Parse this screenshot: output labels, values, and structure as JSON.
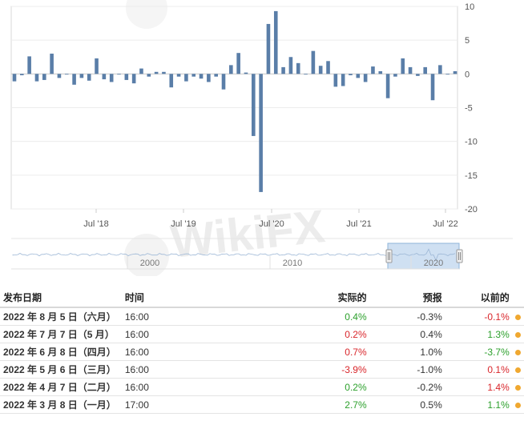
{
  "chart_data": {
    "type": "bar",
    "x_ticks": [
      "Jul '18",
      "Jul '19",
      "Jul '20",
      "Jul '21",
      "Jul '22"
    ],
    "y_ticks": [
      10,
      5,
      0,
      -5,
      -10,
      -15,
      -20
    ],
    "ylim": [
      -20,
      10
    ],
    "values": [
      -1.1,
      -0.2,
      2.6,
      -1.1,
      -0.9,
      3.0,
      -0.6,
      -0.1,
      -1.6,
      -0.6,
      -1.0,
      2.3,
      -0.8,
      -1.2,
      -0.1,
      -0.9,
      -1.4,
      0.8,
      -0.4,
      0.3,
      0.3,
      -2.0,
      -0.4,
      -1.1,
      -0.4,
      -0.7,
      -1.2,
      -0.4,
      -2.3,
      1.3,
      3.1,
      0.2,
      -9.2,
      -17.5,
      7.4,
      9.3,
      1.0,
      2.5,
      1.6,
      -0.1,
      3.4,
      1.2,
      1.9,
      -1.9,
      -1.8,
      -0.2,
      -0.6,
      -1.2,
      1.1,
      0.4,
      -3.6,
      -0.4,
      2.3,
      1.0,
      -0.3,
      1.0,
      -3.9,
      1.3,
      -0.1,
      0.4
    ],
    "grid": true,
    "bar_color": "#5a7ea8"
  },
  "navigator": {
    "labels": [
      "2000",
      "2010",
      "2020"
    ]
  },
  "watermark": {
    "text": "WikiFX"
  },
  "table": {
    "headers": {
      "date": "发布日期",
      "time": "时间",
      "actual": "实际的",
      "forecast": "预报",
      "previous": "以前的"
    },
    "rows": [
      {
        "date": "2022 年 8 月 5 日（六月）",
        "time": "16:00",
        "actual": "0.4%",
        "actual_color": "pos",
        "forecast": "-0.3%",
        "previous": "-0.1%",
        "previous_color": "neg"
      },
      {
        "date": "2022 年 7 月 7 日（5 月）",
        "time": "16:00",
        "actual": "0.2%",
        "actual_color": "neg",
        "forecast": "0.4%",
        "previous": "1.3%",
        "previous_color": "pos"
      },
      {
        "date": "2022 年 6 月 8 日（四月）",
        "time": "16:00",
        "actual": "0.7%",
        "actual_color": "neg",
        "forecast": "1.0%",
        "previous": "-3.7%",
        "previous_color": "pos"
      },
      {
        "date": "2022 年 5 月 6 日（三月）",
        "time": "16:00",
        "actual": "-3.9%",
        "actual_color": "neg",
        "forecast": "-1.0%",
        "previous": "0.1%",
        "previous_color": "neg"
      },
      {
        "date": "2022 年 4 月 7 日（二月）",
        "time": "16:00",
        "actual": "0.2%",
        "actual_color": "pos",
        "forecast": "-0.2%",
        "previous": "1.4%",
        "previous_color": "neg"
      },
      {
        "date": "2022 年 3 月 8 日（一月）",
        "time": "17:00",
        "actual": "2.7%",
        "actual_color": "pos",
        "forecast": "0.5%",
        "previous": "1.1%",
        "previous_color": "pos"
      }
    ]
  }
}
